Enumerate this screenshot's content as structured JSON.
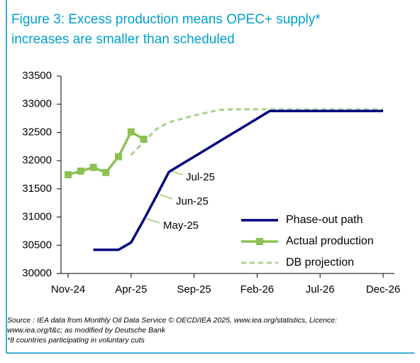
{
  "chart_data": {
    "type": "line",
    "title": "Figure 3: Excess production means OPEC+ supply*",
    "subtitle": "increases are smaller than scheduled",
    "categories": [
      "Nov-24",
      null,
      null,
      null,
      null,
      "Apr-25",
      null,
      null,
      null,
      null,
      "Sep-25",
      null,
      null,
      null,
      null,
      "Feb-26",
      null,
      null,
      null,
      null,
      "Jul-26",
      null,
      null,
      null,
      null,
      "Dec-26"
    ],
    "series": [
      {
        "name": "Phase-out path",
        "color": "#000080",
        "values": [
          null,
          null,
          30420,
          30420,
          30420,
          30550,
          30950,
          31370,
          31800,
          31935,
          32070,
          32205,
          32340,
          32475,
          32610,
          32745,
          32880,
          32880,
          32880,
          32880,
          32880,
          32880,
          32880,
          32880,
          32880,
          32880
        ]
      },
      {
        "name": "Actual production",
        "color": "#8dc153",
        "marker": "square",
        "values": [
          31750,
          31815,
          31880,
          31790,
          32070,
          32510,
          32380,
          null,
          null,
          null,
          null,
          null,
          null,
          null,
          null,
          null,
          null,
          null,
          null,
          null,
          null,
          null,
          null,
          null,
          null,
          null
        ]
      },
      {
        "name": "DB projection",
        "color": "#a9d18e",
        "dash": true,
        "values": [
          null,
          null,
          null,
          null,
          null,
          32100,
          32330,
          32560,
          32680,
          32740,
          32800,
          32850,
          32900,
          32910,
          32910,
          32910,
          32910,
          32910,
          32910,
          32910,
          32910,
          32910,
          32910,
          32910,
          32910,
          32910
        ]
      }
    ],
    "annotations": [
      "Jul-25",
      "Jun-25",
      "May-25"
    ],
    "ylim": [
      30000,
      33500
    ],
    "yticks": [
      30000,
      30500,
      31000,
      31500,
      32000,
      32500,
      33000,
      33500
    ],
    "grid": false,
    "legend": "bottom-right",
    "notes": [
      "Source : IEA data from Monthly Oil Data Service © OECD/IEA 2025, www.iea.org/statistics, Licence:",
      "www.iea.org/t&c; as modified by Deutsche Bank",
      "*8 countries participating in voluntary cuts"
    ]
  }
}
